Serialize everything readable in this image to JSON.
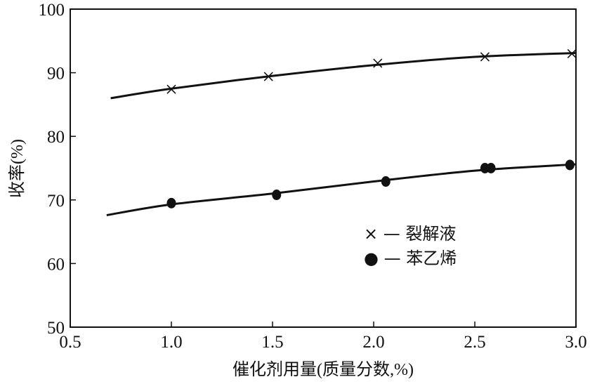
{
  "chart_data": {
    "type": "line",
    "title": "",
    "xlabel": "催化剂用量(质量分数,%)",
    "ylabel": "收率(%)",
    "xlim": [
      0.5,
      3.0
    ],
    "ylim": [
      50,
      100
    ],
    "xticks": [
      "0.5",
      "1.0",
      "1.5",
      "2.0",
      "2.5",
      "3.0"
    ],
    "yticks": [
      "50",
      "60",
      "70",
      "80",
      "90",
      "100"
    ],
    "grid": false,
    "legend_position": "center-right",
    "series": [
      {
        "name": "裂解液",
        "legend_label": "× — 裂解液",
        "marker": "cross",
        "points": [
          [
            1.0,
            87.4
          ],
          [
            1.48,
            89.4
          ],
          [
            2.02,
            91.5
          ],
          [
            2.55,
            92.5
          ],
          [
            2.98,
            93.0
          ]
        ],
        "fit": [
          [
            0.7,
            86.0
          ],
          [
            1.0,
            87.5
          ],
          [
            1.5,
            89.5
          ],
          [
            2.0,
            91.2
          ],
          [
            2.5,
            92.5
          ],
          [
            3.0,
            93.1
          ]
        ]
      },
      {
        "name": "苯乙烯",
        "legend_label": "● — 苯乙烯",
        "marker": "filled-circle",
        "points": [
          [
            1.0,
            69.5
          ],
          [
            1.52,
            70.8
          ],
          [
            2.06,
            72.9
          ],
          [
            2.55,
            75.0
          ],
          [
            2.58,
            75.0
          ],
          [
            2.97,
            75.5
          ]
        ],
        "fit": [
          [
            0.68,
            67.6
          ],
          [
            1.0,
            69.3
          ],
          [
            1.5,
            71.0
          ],
          [
            2.0,
            72.9
          ],
          [
            2.5,
            74.6
          ],
          [
            3.0,
            75.6
          ]
        ]
      }
    ],
    "colors": {
      "ink": "#111111",
      "background": "#ffffff"
    }
  }
}
